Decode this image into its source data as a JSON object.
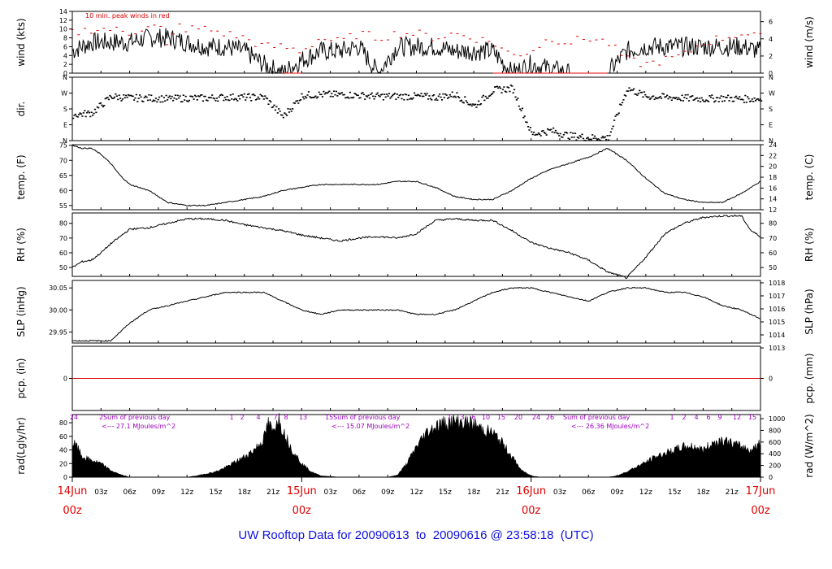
{
  "colors": {
    "trace": "#000000",
    "peak": "#e00000",
    "pcp_line": "#e00000",
    "date_label": "#e00000",
    "footer": "#1010e0",
    "annotation": "#a000c0"
  },
  "footer": {
    "text": "UW Rooftop Data for 20090613  to  20090616 @ 23:58:18  (UTC)"
  },
  "date_ticks": [
    {
      "day": "14Jun",
      "hour": "00z"
    },
    {
      "day": "15Jun",
      "hour": "00z"
    },
    {
      "day": "16Jun",
      "hour": "00z"
    },
    {
      "day": "17Jun",
      "hour": "00z"
    }
  ],
  "hour_ticks": [
    "03z",
    "06z",
    "09z",
    "12z",
    "15z",
    "18z",
    "21z"
  ],
  "chart_data": [
    {
      "type": "line",
      "id": "wind",
      "ylabel": "wind (kts)",
      "ylabel_right": "wind (m/s)",
      "annotation": "10 min. peak winds in red",
      "yticks": [
        "0",
        "2",
        "4",
        "6",
        "8",
        "10",
        "12",
        "14"
      ],
      "yticks_right": [
        "0",
        "2",
        "4",
        "6"
      ],
      "ylim": [
        0,
        14
      ],
      "series": [
        {
          "name": "10 min. peak winds in red",
          "x_hours": [
            0,
            2,
            4,
            6,
            8,
            9.5,
            10,
            11,
            12,
            14,
            16,
            18,
            20,
            22,
            24,
            26,
            28,
            30,
            32,
            34,
            36,
            38,
            40,
            42,
            44,
            46,
            48,
            50,
            52,
            54,
            56,
            58,
            60,
            62,
            64,
            66,
            68,
            70,
            72
          ],
          "values": [
            9,
            10,
            10,
            9,
            11,
            10,
            5,
            11,
            10,
            10,
            9,
            8,
            6,
            6,
            5,
            8,
            7,
            9,
            8,
            9,
            9,
            8,
            9,
            8,
            7,
            4,
            5,
            8,
            7,
            8,
            7,
            3,
            2,
            3,
            4,
            7,
            8,
            9,
            8
          ]
        }
      ],
      "mean_kts": {
        "x_hours": [
          0,
          2,
          4,
          6,
          8,
          10,
          12,
          14,
          16,
          18,
          20,
          22,
          24,
          26,
          28,
          30,
          32,
          34,
          36,
          38,
          40,
          42,
          44,
          46,
          48,
          50,
          52,
          54,
          56,
          58,
          60,
          62,
          64,
          66,
          68,
          70,
          72
        ],
        "values": [
          5,
          7,
          7,
          7,
          8,
          8,
          7,
          6,
          6,
          5,
          2,
          0,
          3,
          5,
          5,
          6,
          0,
          6,
          6,
          6,
          5,
          5,
          5,
          0,
          2,
          1,
          0,
          0,
          0,
          5,
          6,
          6,
          6,
          6,
          6,
          6,
          5
        ]
      }
    },
    {
      "type": "scatter",
      "id": "dir",
      "ylabel": "dir.",
      "yticks": [
        "N",
        "E",
        "S",
        "W",
        "N"
      ],
      "ylim": [
        0,
        360
      ],
      "x_hours": [
        0,
        2,
        4,
        6,
        8,
        10,
        12,
        14,
        16,
        18,
        20,
        22,
        24,
        26,
        28,
        30,
        32,
        34,
        36,
        38,
        40,
        42,
        44,
        46,
        48,
        50,
        52,
        54,
        56,
        58,
        60,
        62,
        64,
        66,
        68,
        70,
        72
      ],
      "values_deg": [
        150,
        160,
        255,
        245,
        245,
        240,
        245,
        245,
        250,
        250,
        250,
        140,
        260,
        265,
        265,
        260,
        255,
        255,
        255,
        250,
        265,
        200,
        290,
        300,
        40,
        60,
        30,
        20,
        20,
        300,
        255,
        250,
        245,
        240,
        245,
        240,
        240
      ]
    },
    {
      "type": "line",
      "id": "temp",
      "ylabel": "temp. (F)",
      "ylabel_right": "temp. (C)",
      "yticks": [
        "55",
        "60",
        "65",
        "70",
        "75"
      ],
      "yticks_right": [
        "12",
        "14",
        "16",
        "18",
        "20",
        "22",
        "24"
      ],
      "ylim": [
        53.6,
        75.2
      ],
      "x_hours": [
        0,
        1,
        2,
        3,
        4,
        5,
        6,
        7,
        8,
        9,
        10,
        12,
        14,
        16,
        18,
        20,
        22,
        24,
        26,
        28,
        30,
        32,
        34,
        36,
        38,
        40,
        42,
        44,
        46,
        48,
        50,
        52,
        54,
        56,
        58,
        60,
        62,
        64,
        66,
        68,
        70,
        72
      ],
      "values": [
        75,
        74,
        74,
        72,
        69,
        65,
        62,
        61,
        60,
        58,
        56,
        55,
        55,
        56,
        57,
        58,
        60,
        61,
        62,
        62,
        62,
        62,
        63,
        63,
        61,
        58,
        57,
        57,
        60,
        64,
        67,
        69,
        71,
        74,
        70,
        64,
        59,
        57,
        56,
        56,
        59,
        63
      ]
    },
    {
      "type": "line",
      "id": "rh",
      "ylabel": "RH (%)",
      "ylabel_right": "RH (%)",
      "yticks": [
        "50",
        "60",
        "70",
        "80"
      ],
      "yticks_right": [
        "50",
        "60",
        "70",
        "80"
      ],
      "ylim": [
        44,
        87
      ],
      "x_hours": [
        0,
        1,
        2,
        3,
        4,
        6,
        8,
        10,
        12,
        14,
        16,
        18,
        20,
        22,
        24,
        26,
        28,
        30,
        32,
        34,
        36,
        38,
        40,
        42,
        44,
        46,
        48,
        50,
        52,
        54,
        56,
        58,
        60,
        62,
        64,
        66,
        68,
        70,
        71,
        72
      ],
      "values": [
        50,
        54,
        55,
        60,
        66,
        76,
        77,
        80,
        83,
        83,
        82,
        79,
        77,
        75,
        72,
        70,
        68,
        70,
        71,
        70,
        73,
        82,
        83,
        82,
        82,
        75,
        67,
        63,
        60,
        55,
        47,
        43,
        57,
        73,
        80,
        84,
        85,
        85,
        75,
        71
      ]
    },
    {
      "type": "line",
      "id": "slp",
      "ylabel": "SLP (inHg)",
      "ylabel_right": "SLP (hPa)",
      "yticks": [
        "29.95",
        "30.00",
        "30.05"
      ],
      "yticks_right": [
        "1013",
        "1014",
        "1015",
        "1016",
        "1017",
        "1018"
      ],
      "ylim": [
        29.925,
        30.067
      ],
      "x_hours": [
        0,
        2,
        4,
        5,
        6,
        8,
        10,
        12,
        14,
        16,
        18,
        20,
        22,
        24,
        26,
        28,
        30,
        32,
        34,
        36,
        38,
        40,
        42,
        44,
        46,
        48,
        50,
        52,
        54,
        56,
        58,
        60,
        62,
        64,
        66,
        68,
        70,
        72
      ],
      "values": [
        29.93,
        29.93,
        29.93,
        29.95,
        29.97,
        30.0,
        30.01,
        30.02,
        30.03,
        30.04,
        30.04,
        30.04,
        30.02,
        30.0,
        29.99,
        30.0,
        30.0,
        30.0,
        30.0,
        29.99,
        29.99,
        30.0,
        30.02,
        30.04,
        30.05,
        30.05,
        30.04,
        30.03,
        30.02,
        30.04,
        30.05,
        30.05,
        30.04,
        30.04,
        30.03,
        30.01,
        30.0,
        29.98
      ]
    },
    {
      "type": "line",
      "id": "pcp",
      "ylabel": "pcp. (in)",
      "ylabel_right": "pcp. (mm)",
      "yticks": [
        "0"
      ],
      "yticks_right": [
        "0"
      ],
      "ylim": [
        -1,
        1
      ],
      "x_hours": [
        0,
        72
      ],
      "values": [
        0,
        0
      ]
    },
    {
      "type": "area",
      "id": "rad",
      "ylabel": "rad(Lgly/hr)",
      "ylabel_right": "rad (W/m^2)",
      "yticks": [
        "0",
        "20",
        "40",
        "60",
        "80"
      ],
      "yticks_right": [
        "0",
        "200",
        "400",
        "600",
        "800",
        "1000"
      ],
      "ylim": [
        0,
        92
      ],
      "x_hours": [
        0,
        0.5,
        1,
        2,
        3,
        4,
        5,
        6,
        8,
        10,
        12,
        13,
        14,
        15,
        16,
        17,
        18,
        19,
        20,
        20.5,
        21,
        21.5,
        22,
        23,
        24,
        25,
        26,
        28,
        30,
        32,
        33,
        34,
        35,
        36,
        37,
        38,
        39,
        40,
        41,
        42,
        43,
        44,
        45,
        46,
        47,
        48,
        49,
        50,
        52,
        54,
        56,
        57,
        58,
        59,
        60,
        61,
        62,
        63,
        64,
        65,
        66,
        67,
        68,
        69,
        70,
        71,
        72
      ],
      "values": [
        50,
        45,
        30,
        25,
        20,
        10,
        4,
        0,
        0,
        0,
        0,
        2,
        5,
        8,
        14,
        22,
        30,
        40,
        55,
        80,
        65,
        90,
        70,
        40,
        20,
        8,
        2,
        0,
        0,
        0,
        0,
        3,
        20,
        45,
        65,
        75,
        80,
        82,
        80,
        78,
        70,
        65,
        50,
        30,
        10,
        2,
        0,
        0,
        0,
        0,
        0,
        2,
        8,
        15,
        22,
        30,
        35,
        40,
        45,
        45,
        40,
        50,
        55,
        50,
        45,
        40,
        50
      ],
      "sums": [
        {
          "label": "2Sum of previous day",
          "value": "<--- 27.1 MJoules/m^2"
        },
        {
          "label": "15Sum of previous day",
          "value": "<--- 15.07 MJoules/m^2"
        },
        {
          "label": "Sum of previous day",
          "value": "<--- 26.36 MJoules/m^2"
        }
      ],
      "cloud_markers": [
        "24",
        "1",
        "2",
        "4",
        "7",
        "8",
        "13",
        "1",
        "3",
        "6",
        "10",
        "15",
        "20",
        "24",
        "26",
        "1",
        "2",
        "4",
        "6",
        "9",
        "12",
        "15"
      ]
    }
  ]
}
